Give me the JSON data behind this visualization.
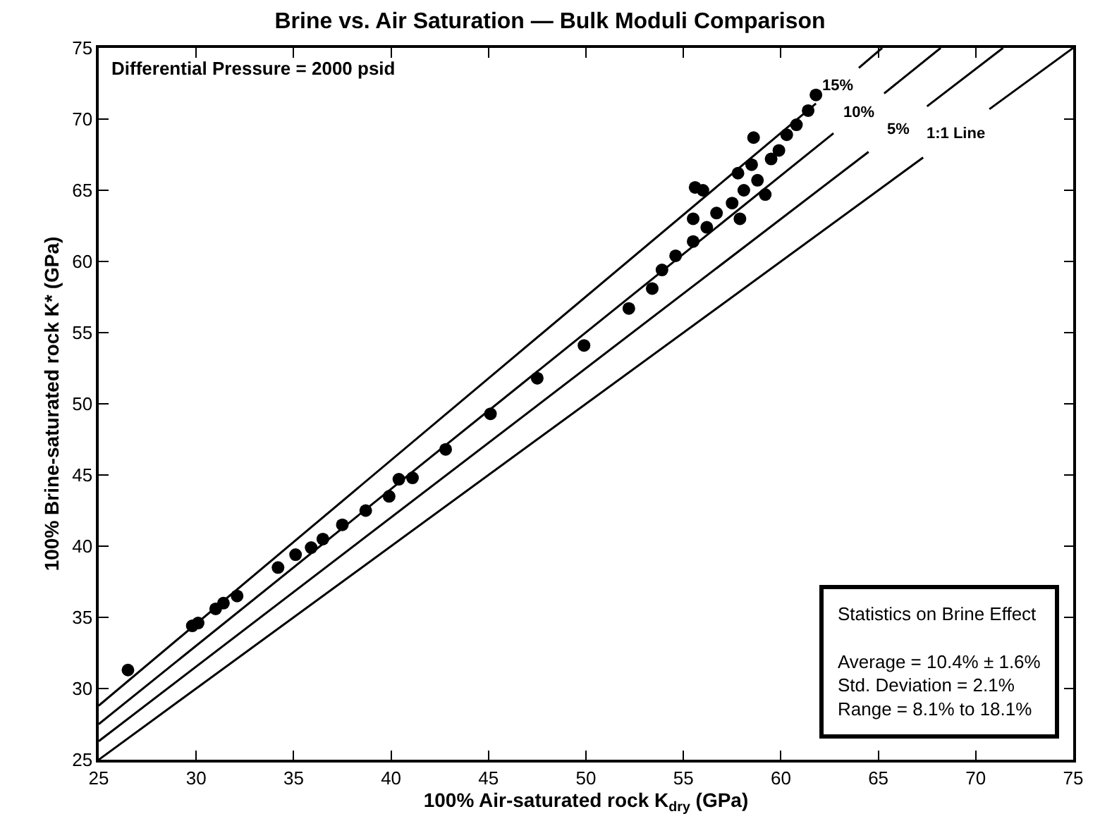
{
  "chart_data": {
    "type": "scatter",
    "title": "Brine vs. Air Saturation — Bulk Moduli Comparison",
    "xlabel": "100% Air-saturated rock K$_{dry}$ (GPa)",
    "ylabel": "100% Brine-saturated rock K* (GPa)",
    "xlim": [
      25,
      75
    ],
    "ylim": [
      25,
      75
    ],
    "xticks": [
      25,
      30,
      35,
      40,
      45,
      50,
      55,
      60,
      65,
      70,
      75
    ],
    "yticks": [
      25,
      30,
      35,
      40,
      45,
      50,
      55,
      60,
      65,
      70,
      75
    ],
    "grid": false,
    "marker": "circle",
    "series": [
      {
        "color": "#000000",
        "x": [
          26.5,
          29.8,
          30.1,
          31.0,
          31.4,
          32.1,
          34.2,
          35.1,
          35.9,
          36.5,
          37.5,
          38.7,
          39.9,
          40.4,
          41.1,
          42.8,
          45.1,
          47.5,
          49.9,
          52.2,
          53.4,
          53.9,
          54.6,
          55.5,
          56.2,
          55.5,
          56.7,
          57.9,
          55.6,
          56.0,
          57.5,
          58.1,
          59.2,
          58.8,
          57.8,
          58.5,
          59.5,
          59.9,
          58.6,
          60.3,
          60.8,
          61.4,
          61.8
        ],
        "values": [
          31.3,
          34.4,
          34.6,
          35.6,
          36.0,
          36.5,
          38.5,
          39.4,
          39.9,
          40.5,
          41.5,
          42.5,
          43.5,
          44.7,
          44.8,
          46.8,
          49.3,
          51.8,
          54.1,
          56.7,
          58.1,
          59.4,
          60.4,
          61.4,
          62.4,
          63.0,
          63.4,
          63.0,
          65.2,
          65.0,
          64.1,
          65.0,
          64.7,
          65.7,
          66.2,
          66.8,
          67.2,
          67.8,
          68.7,
          68.9,
          69.6,
          70.6,
          71.7
        ]
      },
      {
        "type": "line",
        "name": "15%",
        "color": "#000000",
        "marker": "none",
        "x": [
          25,
          61.8,
          null,
          64.0,
          65.2
        ],
        "values": [
          28.8,
          71.1,
          null,
          73.6,
          75
        ]
      },
      {
        "type": "line",
        "name": "10%",
        "color": "#000000",
        "marker": "none",
        "x": [
          25,
          62.7,
          null,
          65.3,
          68.2
        ],
        "values": [
          27.5,
          69.0,
          null,
          71.8,
          75
        ]
      },
      {
        "type": "line",
        "name": "5%",
        "color": "#000000",
        "marker": "none",
        "x": [
          25,
          64.5,
          null,
          67.5,
          71.4
        ],
        "values": [
          26.3,
          67.7,
          null,
          70.9,
          75
        ]
      },
      {
        "type": "line",
        "name": "1:1 Line",
        "color": "#000000",
        "marker": "none",
        "x": [
          25,
          67.3,
          null,
          70.7,
          75
        ],
        "values": [
          25,
          67.3,
          null,
          70.7,
          75
        ]
      }
    ],
    "annotations": [
      "Differential Pressure = 2000 psid",
      "Statistics on Brine Effect\n\nAverage = 10.4% ± 1.6%\nStd. Deviation = 2.1%\nRange = 8.1% to 18.1%"
    ]
  }
}
